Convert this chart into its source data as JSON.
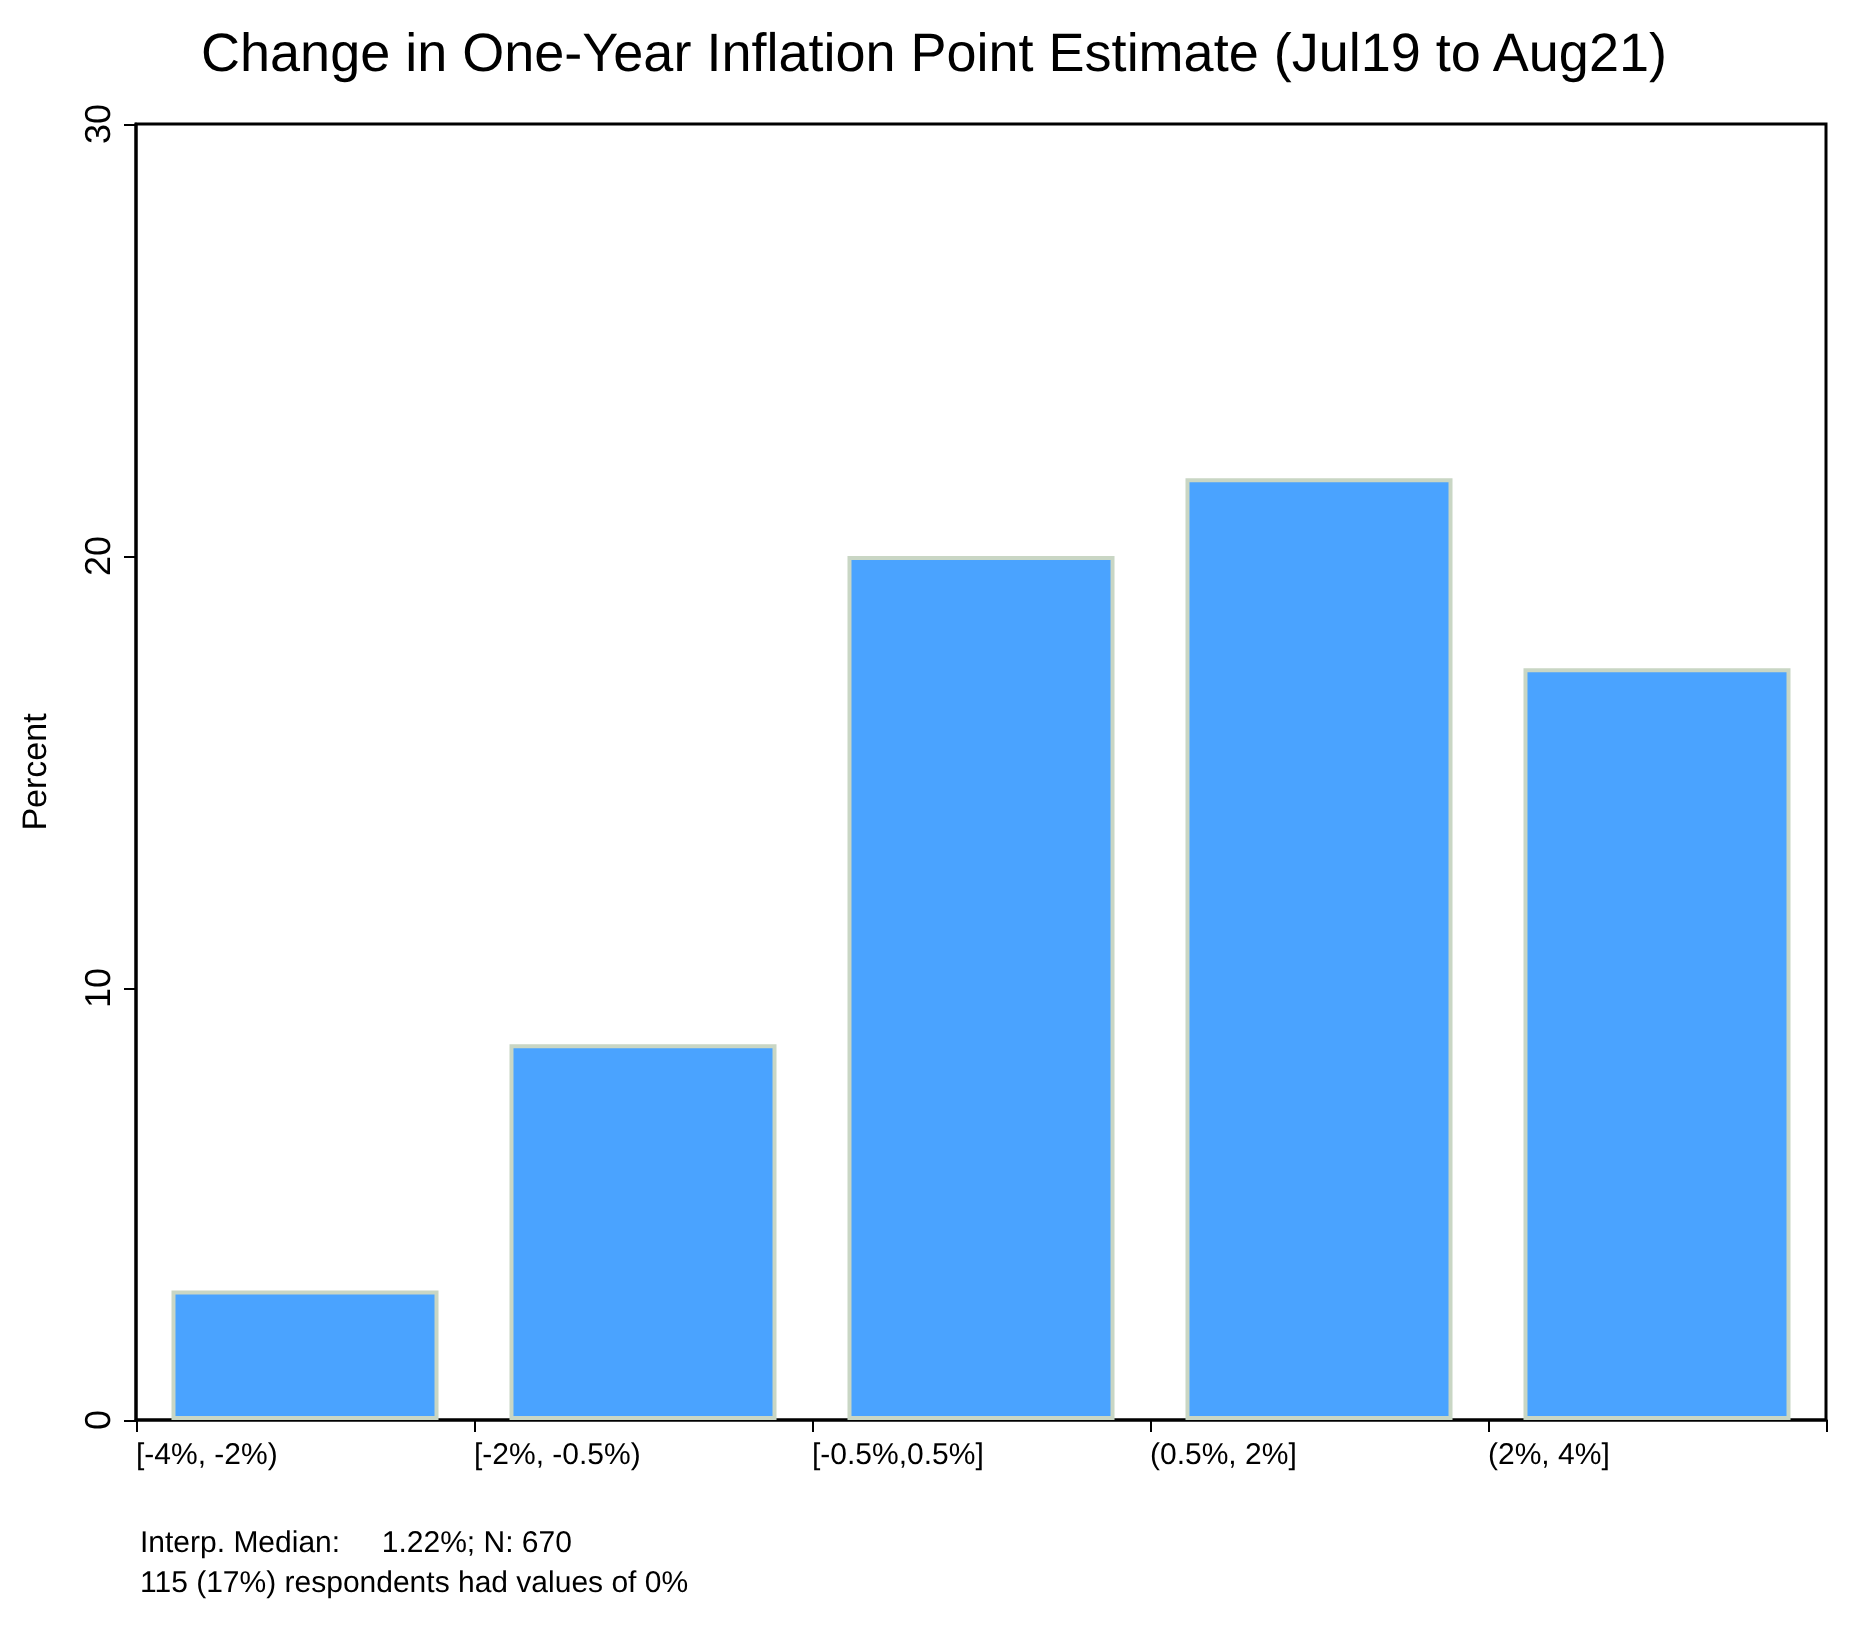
{
  "chart_data": {
    "type": "bar",
    "title": "Change in One-Year Inflation Point Estimate (Jul19 to Aug21)",
    "ylabel": "Percent",
    "categories": [
      "[-4%, -2%)",
      "[-2%, -0.5%)",
      "[-0.5%,0.5%]",
      "(0.5%, 2%]",
      "(2%, 4%]"
    ],
    "values": [
      3.0,
      8.7,
      20.0,
      21.8,
      17.4
    ],
    "color": "#4aa3ff",
    "ylim": [
      0,
      30
    ],
    "yticks": [
      0,
      10,
      20,
      30
    ],
    "grid": false,
    "annotations": [
      "Interp. Median:     1.22%; N: 670",
      "115 (17%) respondents had values of 0%"
    ]
  }
}
